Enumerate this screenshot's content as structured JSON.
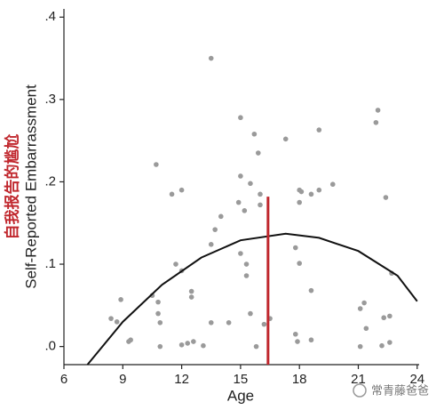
{
  "chart_data": {
    "type": "scatter",
    "x_label": "Age",
    "y_label": "Self-Reported Embarrassment",
    "y_label_annotation": "自我报告的尴尬",
    "watermark": "常青藤爸爸",
    "xlim": [
      6,
      24.1
    ],
    "ylim": [
      -0.022,
      0.41
    ],
    "xticks": [
      6,
      9,
      12,
      15,
      18,
      21,
      24
    ],
    "yticks": [
      {
        "value": 0,
        "label": ".0"
      },
      {
        "value": 0.1,
        "label": ".1"
      },
      {
        "value": 0.2,
        "label": ".2"
      },
      {
        "value": 0.3,
        "label": ".3"
      },
      {
        "value": 0.4,
        "label": ".4"
      }
    ],
    "series": [
      {
        "color": "#9a9a9a",
        "x": [
          13.5,
          15.0,
          15.7,
          15.9,
          17.3,
          19.0,
          22.0,
          21.9,
          10.7,
          11.5,
          12.0,
          15.0,
          15.5,
          16.0,
          14.9,
          15.2,
          16.0,
          18.0,
          18.1,
          18.0,
          18.6,
          19.0,
          19.7,
          22.4,
          14.0,
          13.7,
          13.5,
          15.0,
          15.3,
          15.3,
          17.8,
          18.0,
          11.7,
          12.0,
          12.5,
          12.5,
          10.5,
          10.8,
          10.8,
          10.9,
          8.9,
          8.4,
          8.7,
          9.4,
          9.3,
          10.9,
          12.0,
          12.3,
          12.6,
          13.1,
          13.5,
          14.4,
          15.5,
          15.8,
          16.2,
          16.5,
          17.8,
          17.9,
          18.6,
          18.6,
          21.1,
          21.3,
          21.4,
          21.1,
          22.2,
          22.3,
          22.6,
          22.6,
          22.7
        ],
        "y": [
          0.35,
          0.278,
          0.258,
          0.235,
          0.252,
          0.263,
          0.287,
          0.272,
          0.221,
          0.185,
          0.19,
          0.207,
          0.198,
          0.185,
          0.175,
          0.165,
          0.172,
          0.19,
          0.188,
          0.175,
          0.185,
          0.19,
          0.197,
          0.181,
          0.158,
          0.142,
          0.124,
          0.113,
          0.1,
          0.086,
          0.12,
          0.101,
          0.1,
          0.092,
          0.067,
          0.06,
          0.062,
          0.054,
          0.04,
          0.029,
          0.057,
          0.034,
          0.03,
          0.008,
          0.006,
          0.0,
          0.002,
          0.004,
          0.006,
          0.001,
          0.029,
          0.029,
          0.04,
          0.0,
          0.027,
          0.034,
          0.015,
          0.006,
          0.068,
          0.008,
          0.046,
          0.053,
          0.022,
          0.0,
          0.001,
          0.035,
          0.037,
          0.005,
          0.089
        ]
      }
    ],
    "fit_curve": {
      "color": "#111111",
      "x": [
        7.2,
        9,
        11,
        13,
        15,
        17.3,
        19,
        21,
        23,
        24
      ],
      "y": [
        -0.022,
        0.03,
        0.075,
        0.108,
        0.129,
        0.137,
        0.132,
        0.116,
        0.086,
        0.055
      ]
    },
    "marker_line": {
      "color": "#c0272d",
      "x": 16.4,
      "y": 0.182
    }
  }
}
